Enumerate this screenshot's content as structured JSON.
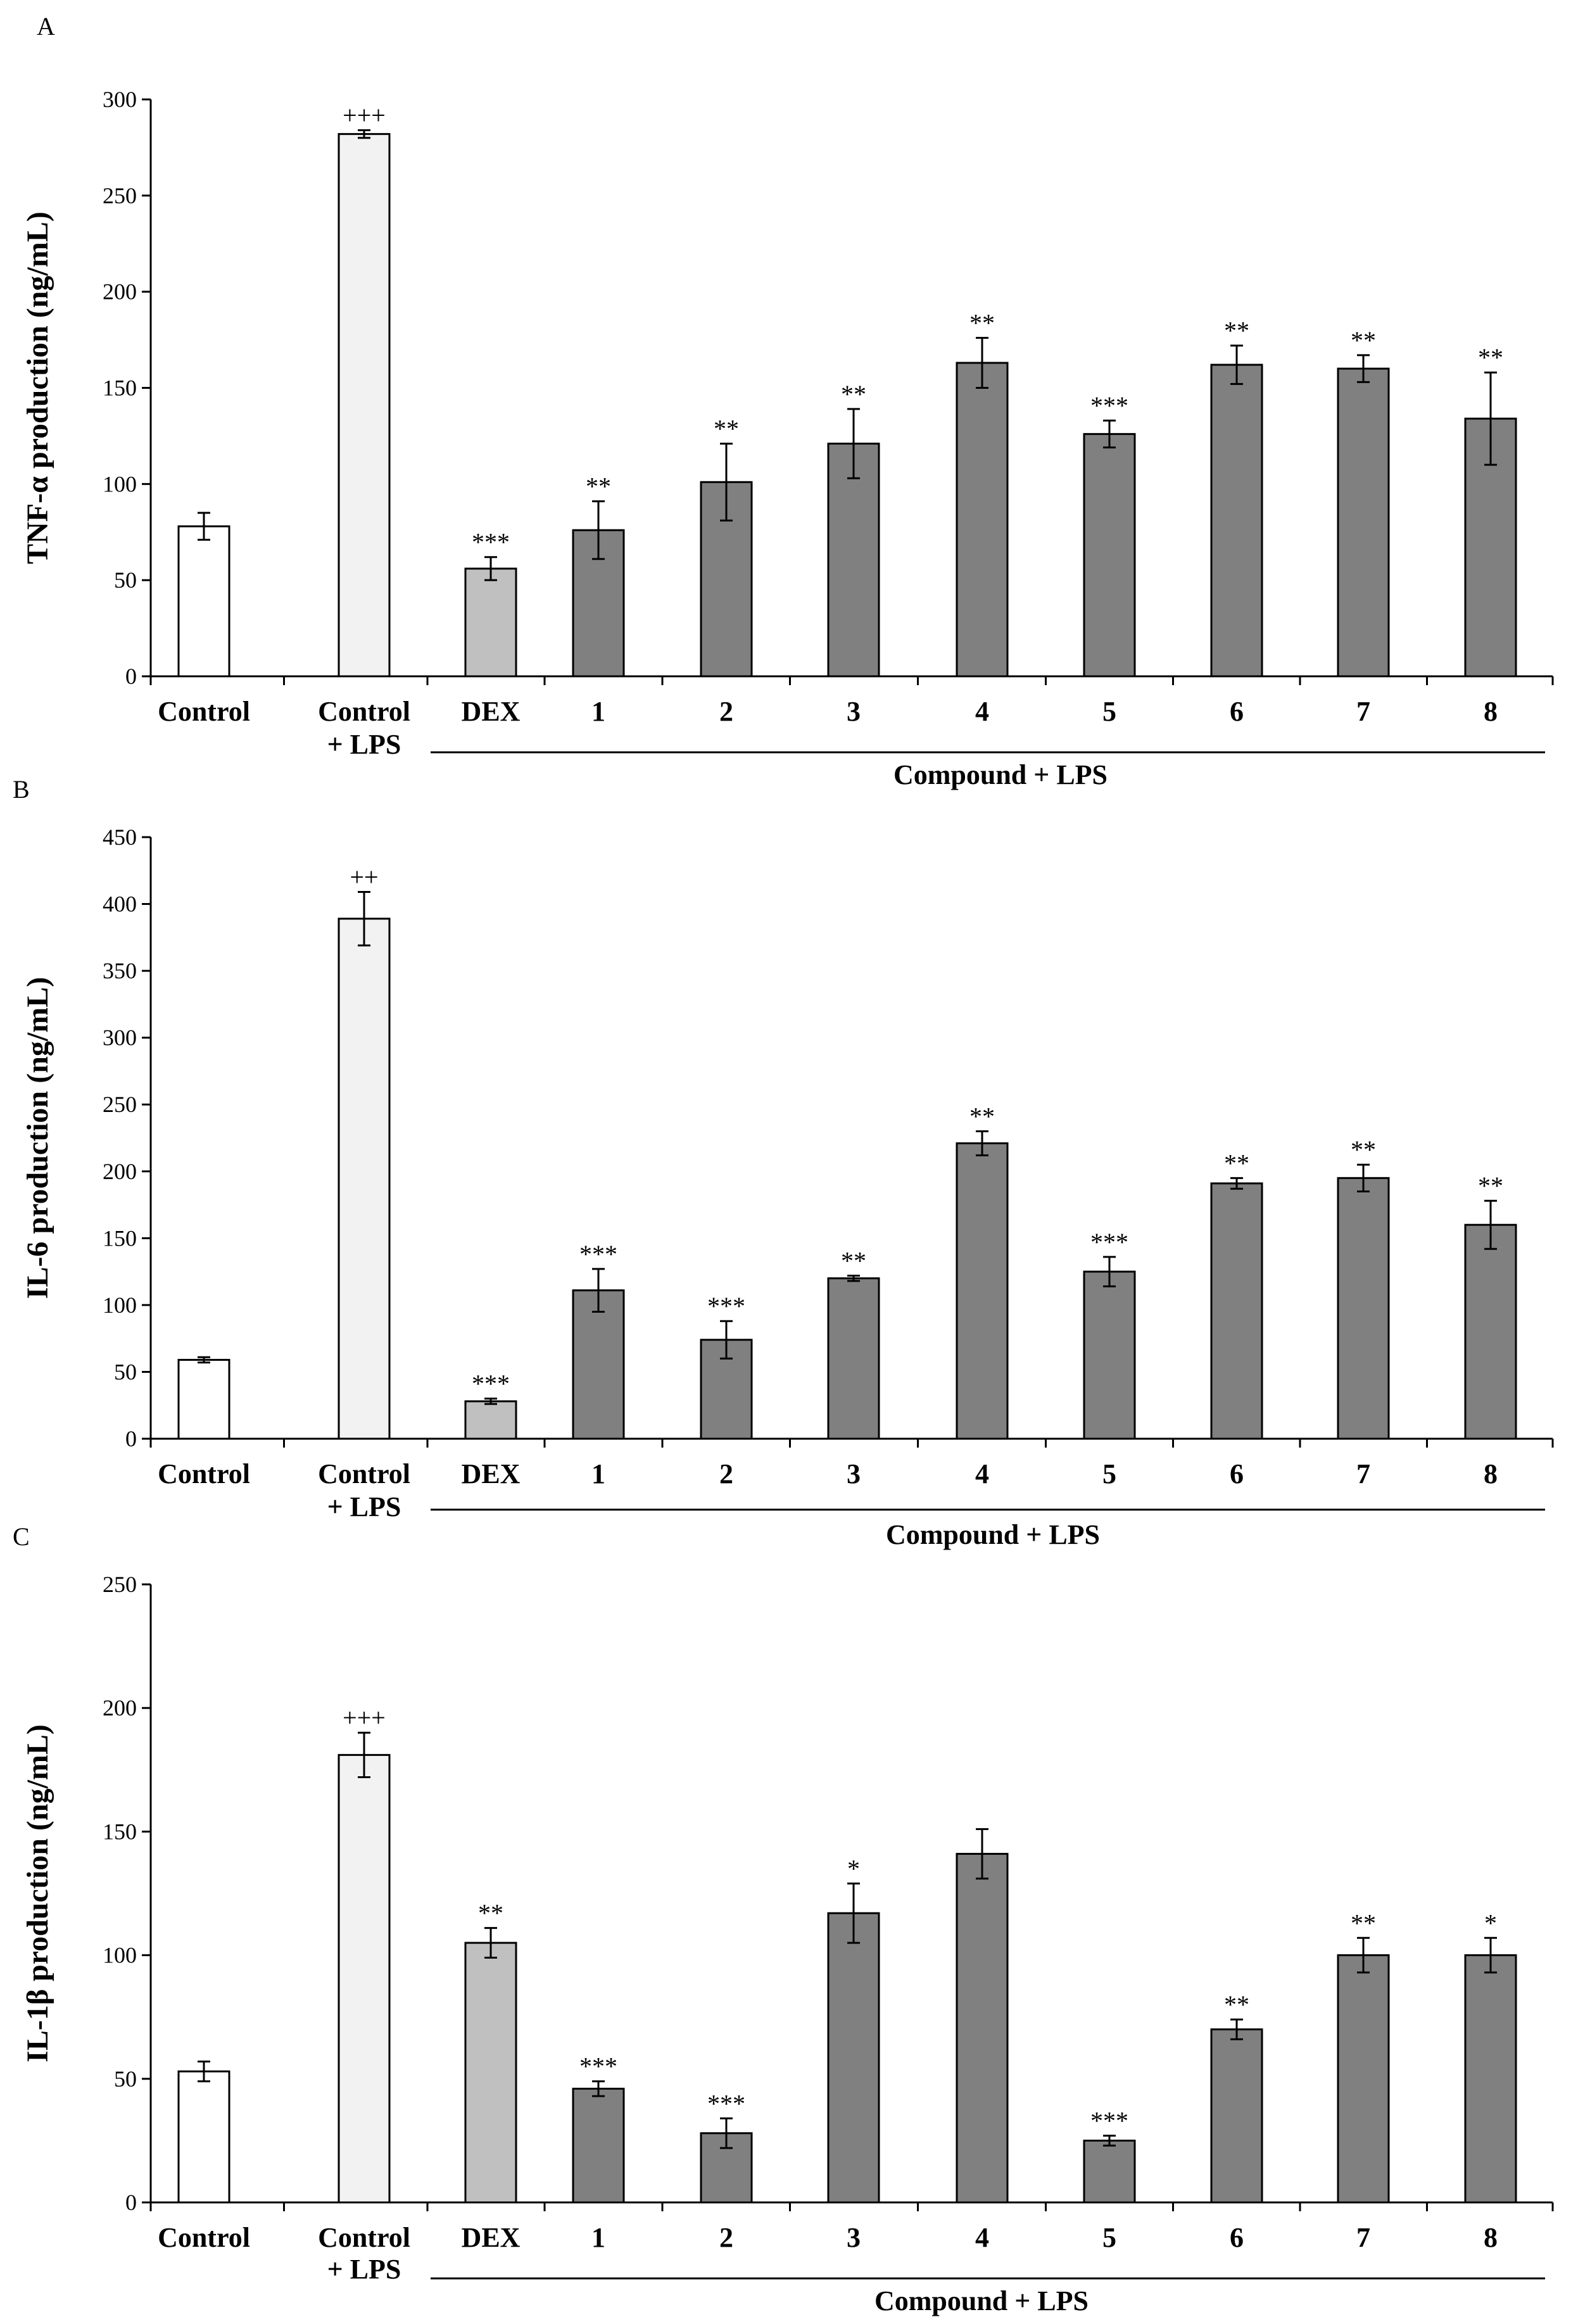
{
  "chart_data": [
    {
      "type": "bar",
      "panel_label": "A",
      "ylabel": "TNF-α production (ng/mL)",
      "ylim": [
        0,
        300
      ],
      "yticks": [
        "0",
        "50",
        "100",
        "150",
        "200",
        "250",
        "300"
      ],
      "categories": [
        "Control",
        "Control\n+ LPS",
        "DEX",
        "1",
        "2",
        "3",
        "4",
        "5",
        "6",
        "7",
        "8"
      ],
      "values": [
        78,
        282,
        56,
        76,
        101,
        121,
        163,
        126,
        162,
        160,
        134
      ],
      "errors": [
        7,
        2,
        6,
        15,
        20,
        18,
        13,
        7,
        10,
        7,
        24
      ],
      "significance": [
        "",
        "+++",
        "***",
        "**",
        "**",
        "**",
        "**",
        "***",
        "**",
        "**",
        "**"
      ],
      "bar_colors": [
        "#ffffff",
        "#f2f2f2",
        "#c0c0c0",
        "#808080",
        "#808080",
        "#808080",
        "#808080",
        "#808080",
        "#808080",
        "#808080",
        "#808080"
      ],
      "group_label": "Compound + LPS"
    },
    {
      "type": "bar",
      "panel_label": "B",
      "ylabel": "IL-6 production (ng/mL)",
      "ylim": [
        0,
        450
      ],
      "yticks": [
        "0",
        "50",
        "100",
        "150",
        "200",
        "250",
        "300",
        "350",
        "400",
        "450"
      ],
      "categories": [
        "Control",
        "Control\n+ LPS",
        "DEX",
        "1",
        "2",
        "3",
        "4",
        "5",
        "6",
        "7",
        "8"
      ],
      "values": [
        59,
        389,
        28,
        111,
        74,
        120,
        221,
        125,
        191,
        195,
        160
      ],
      "errors": [
        2,
        20,
        2,
        16,
        14,
        2,
        9,
        11,
        4,
        10,
        18
      ],
      "significance": [
        "",
        "++",
        "***",
        "***",
        "***",
        "**",
        "**",
        "***",
        "**",
        "**",
        "**"
      ],
      "bar_colors": [
        "#ffffff",
        "#f2f2f2",
        "#c0c0c0",
        "#808080",
        "#808080",
        "#808080",
        "#808080",
        "#808080",
        "#808080",
        "#808080",
        "#808080"
      ],
      "group_label": "Compound + LPS"
    },
    {
      "type": "bar",
      "panel_label": "C",
      "ylabel": "IL-1β production (ng/mL)",
      "ylim": [
        0,
        250
      ],
      "yticks": [
        "0",
        "50",
        "100",
        "150",
        "200",
        "250"
      ],
      "categories": [
        "Control",
        "Control\n+ LPS",
        "DEX",
        "1",
        "2",
        "3",
        "4",
        "5",
        "6",
        "7",
        "8"
      ],
      "values": [
        53,
        181,
        105,
        46,
        28,
        117,
        141,
        25,
        70,
        100,
        100
      ],
      "errors": [
        4,
        9,
        6,
        3,
        6,
        12,
        10,
        2,
        4,
        7,
        7
      ],
      "significance": [
        "",
        "+++",
        "**",
        "***",
        "***",
        "*",
        "",
        "***",
        "**",
        "**",
        "*"
      ],
      "bar_colors": [
        "#ffffff",
        "#f2f2f2",
        "#c0c0c0",
        "#808080",
        "#808080",
        "#808080",
        "#808080",
        "#808080",
        "#808080",
        "#808080",
        "#808080"
      ],
      "group_label": "Compound + LPS"
    }
  ]
}
